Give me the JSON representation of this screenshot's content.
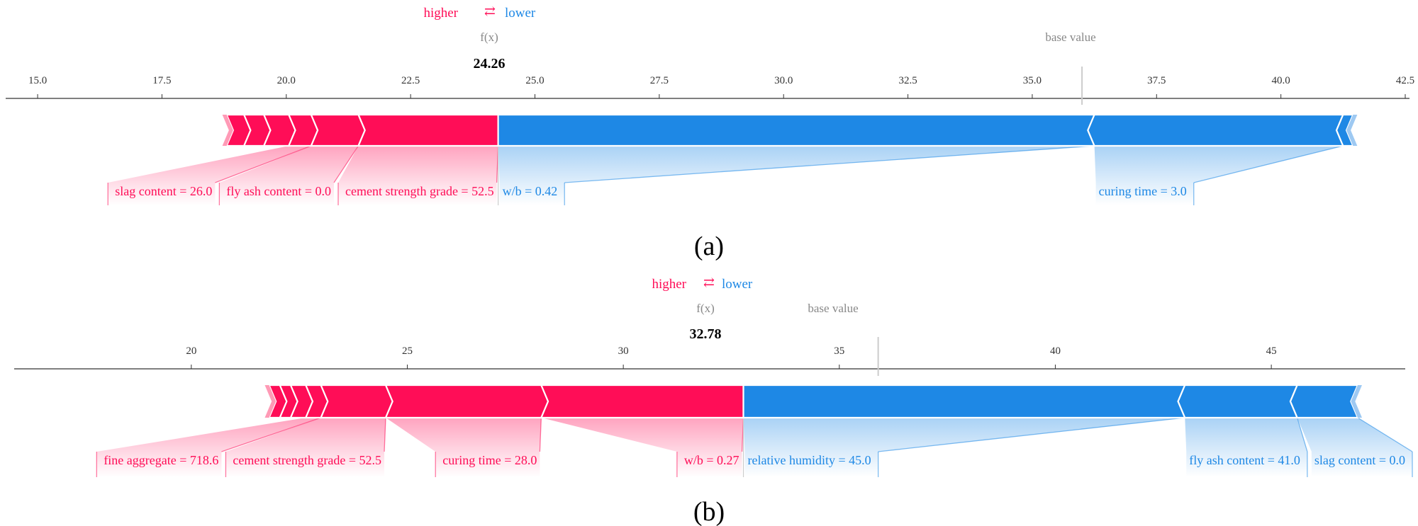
{
  "legend": {
    "higher": "higher",
    "arrow": "⇄",
    "lower": "lower"
  },
  "colors": {
    "positive": "#ff0d57",
    "negative": "#1e88e5"
  },
  "chart_data": [
    {
      "type": "force",
      "caption": "(a)",
      "f_label": "f(x)",
      "f_value": 24.26,
      "f_text": "24.26",
      "base_label": "base value",
      "base_value": 36.0,
      "xlim": [
        14.5,
        42.5
      ],
      "ticks": [
        15.0,
        17.5,
        20.0,
        22.5,
        25.0,
        27.5,
        30.0,
        32.5,
        35.0,
        37.5,
        40.0,
        42.5
      ],
      "tick_labels": [
        "15.0",
        "17.5",
        "20.0",
        "22.5",
        "25.0",
        "27.5",
        "30.0",
        "32.5",
        "35.0",
        "37.5",
        "40.0",
        "42.5"
      ],
      "positive": [
        {
          "label": "",
          "from": 18.8,
          "to": 19.15
        },
        {
          "label": "",
          "from": 19.15,
          "to": 19.55
        },
        {
          "label": "",
          "from": 19.55,
          "to": 20.05
        },
        {
          "label": "slag content = 26.0",
          "from": 20.05,
          "to": 20.5
        },
        {
          "label": "fly ash content = 0.0",
          "from": 20.5,
          "to": 21.45
        },
        {
          "label": "cement strength grade = 52.5",
          "from": 21.45,
          "to": 24.26
        }
      ],
      "negative": [
        {
          "label": "w/b = 0.42",
          "from": 24.26,
          "to": 36.25
        },
        {
          "label": "curing time = 3.0",
          "from": 36.25,
          "to": 41.25
        },
        {
          "label": "",
          "from": 41.25,
          "to": 41.45
        }
      ]
    },
    {
      "type": "force",
      "caption": "(b)",
      "f_label": "f(x)",
      "f_value": 32.78,
      "f_text": "32.78",
      "base_label": "base value",
      "base_value": 35.9,
      "xlim": [
        15.9,
        48.1
      ],
      "ticks": [
        20,
        25,
        30,
        35,
        40,
        45
      ],
      "tick_labels": [
        "20",
        "25",
        "30",
        "35",
        "40",
        "45"
      ],
      "positive": [
        {
          "label": "",
          "from": 21.8,
          "to": 22.05
        },
        {
          "label": "",
          "from": 22.05,
          "to": 22.3
        },
        {
          "label": "",
          "from": 22.3,
          "to": 22.65
        },
        {
          "label": "fine aggregate = 718.6",
          "from": 22.65,
          "to": 23.0
        },
        {
          "label": "cement strength grade = 52.5",
          "from": 23.0,
          "to": 24.5
        },
        {
          "label": "curing time = 28.0",
          "from": 24.5,
          "to": 28.1
        },
        {
          "label": "w/b = 0.27",
          "from": 28.1,
          "to": 32.78
        }
      ],
      "negative": [
        {
          "label": "relative humidity = 45.0",
          "from": 32.78,
          "to": 43.0
        },
        {
          "label": "fly ash content = 41.0",
          "from": 43.0,
          "to": 45.6
        },
        {
          "label": "slag content = 0.0",
          "from": 45.6,
          "to": 47.0
        }
      ]
    }
  ]
}
